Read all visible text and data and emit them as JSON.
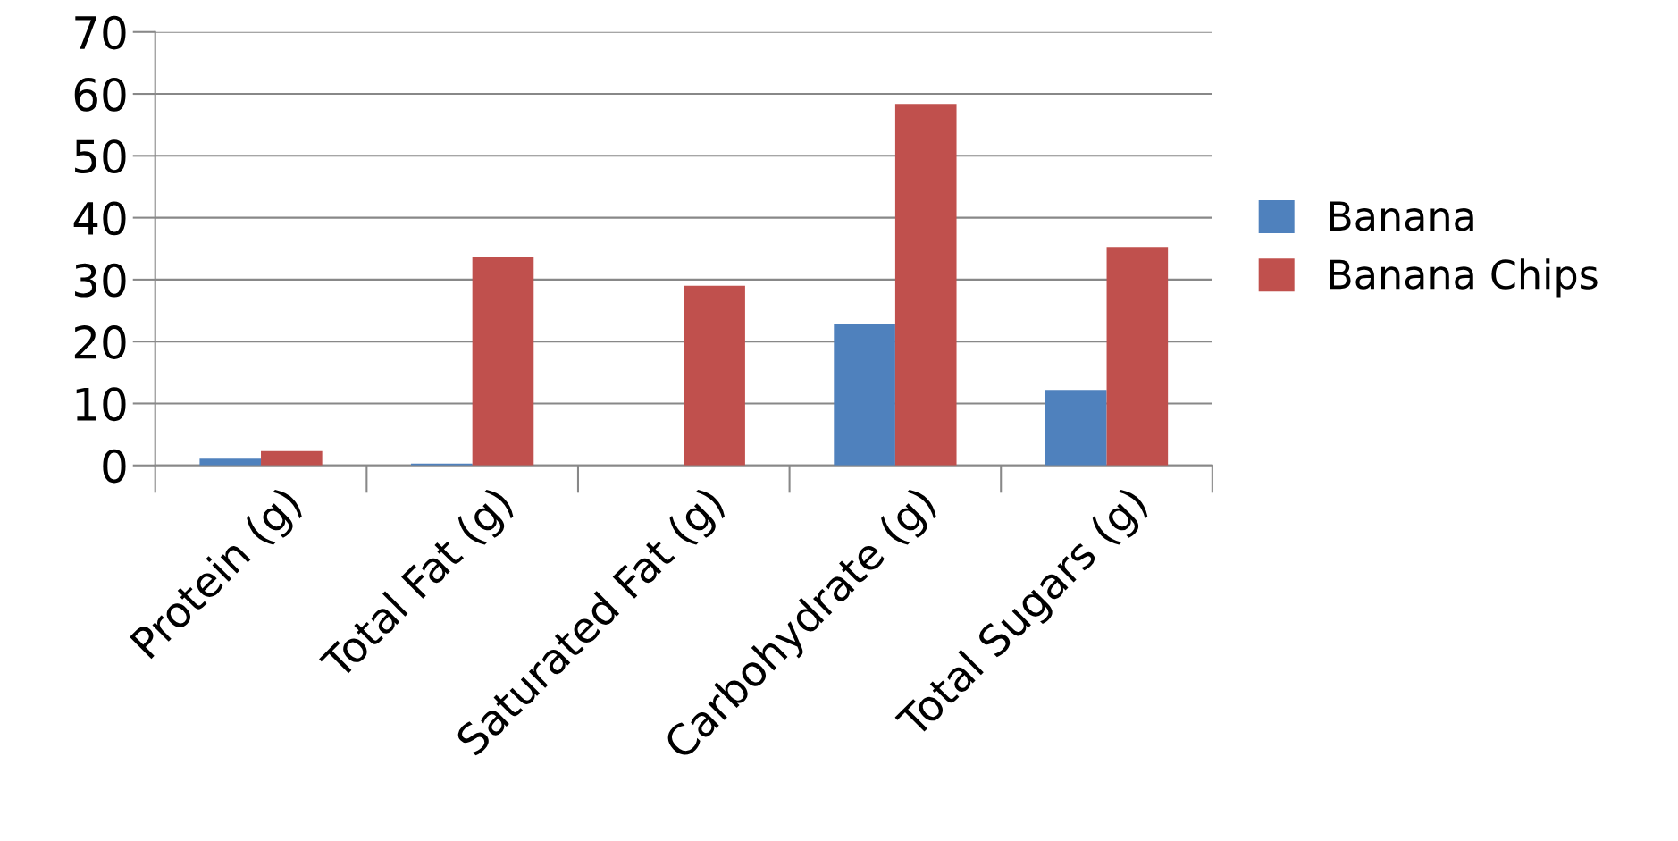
{
  "chart_data": {
    "type": "bar",
    "categories": [
      "Protein (g)",
      "Total Fat (g)",
      "Saturated Fat (g)",
      "Carbohydrate (g)",
      "Total Sugars (g)"
    ],
    "series": [
      {
        "name": "Banana",
        "color": "#4f81bd",
        "values": [
          1.1,
          0.3,
          null,
          22.8,
          12.2
        ]
      },
      {
        "name": "Banana Chips",
        "color": "#c0504d",
        "values": [
          2.3,
          33.6,
          29.0,
          58.4,
          35.3
        ]
      }
    ],
    "ylim": [
      0,
      70
    ],
    "yticks": [
      0,
      10,
      20,
      30,
      40,
      50,
      60,
      70
    ],
    "grid": "y",
    "legend": "right"
  }
}
